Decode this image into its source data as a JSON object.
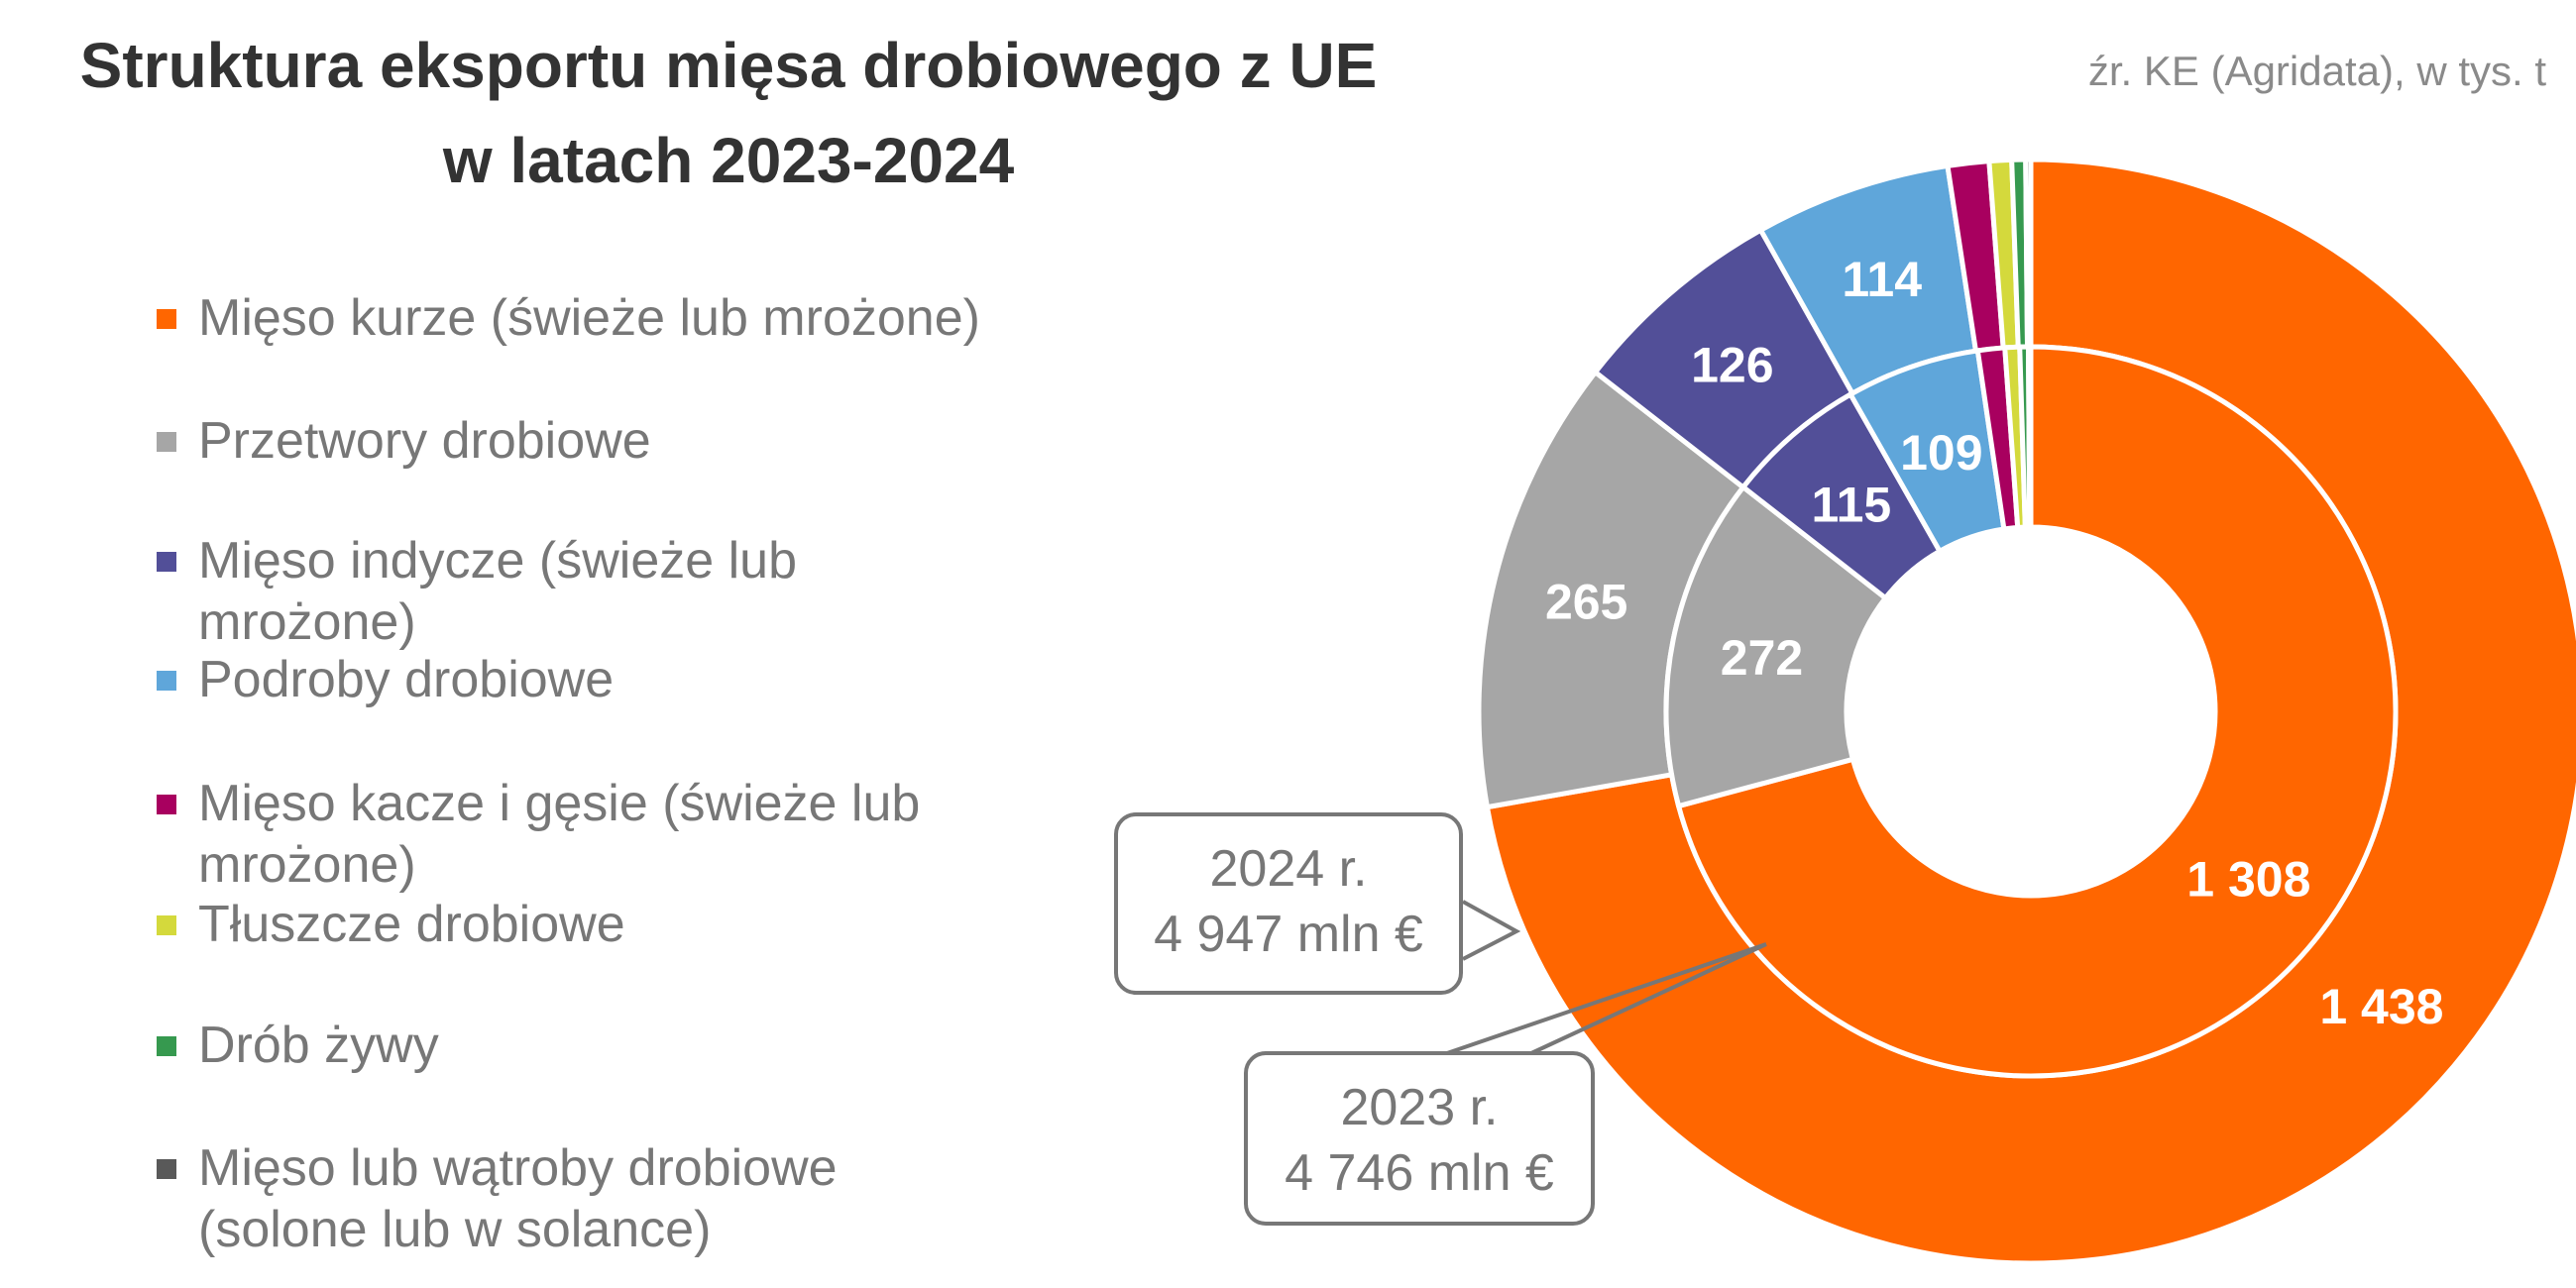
{
  "chart_data": {
    "type": "pie",
    "subtype": "nested-donut",
    "title": "Struktura eksportu mięsa drobiowego z UE w latach 2023-2024",
    "title_lines": [
      "Struktura eksportu mięsa drobiowego z UE",
      "w latach 2023-2024"
    ],
    "source": "źr. KE (Agridata), w tys. t",
    "legend_position": "left",
    "categories": [
      "Mięso kurze (świeże lub mrożone)",
      "Przetwory drobiowe",
      "Mięso indycze (świeże lub mrożone)",
      "Podroby drobiowe",
      "Mięso kacze i gęsie (świeże lub mrożone)",
      "Tłuszcze drobiowe",
      "Drób żywy",
      "Mięso lub wątroby drobiowe (solone lub w solance)"
    ],
    "legend_lines": [
      [
        "Mięso kurze (świeże lub mrożone)"
      ],
      [
        "Przetwory drobiowe"
      ],
      [
        "Mięso indycze (świeże lub",
        "mrożone)"
      ],
      [
        "Podroby drobiowe"
      ],
      [
        "Mięso kacze i gęsie (świeże lub",
        "mrożone)"
      ],
      [
        "Tłuszcze drobiowe"
      ],
      [
        "Drób żywy"
      ],
      [
        "Mięso lub wątroby drobiowe",
        "(solone lub w solance)"
      ]
    ],
    "colors": [
      "#ff6600",
      "#a6a6a6",
      "#524f98",
      "#5fa6da",
      "#a8005f",
      "#d4d93c",
      "#36994f",
      "#595959"
    ],
    "series": [
      {
        "name": "2024",
        "ring": "outer",
        "values": [
          1438,
          265,
          126,
          114,
          24,
          13,
          8,
          3
        ],
        "labels": [
          "1 438",
          "265",
          "126",
          "114",
          "",
          "",
          "",
          ""
        ],
        "callout": [
          "2024 r.",
          "4 947 mln €"
        ]
      },
      {
        "name": "2023",
        "ring": "inner",
        "values": [
          1308,
          272,
          115,
          109,
          22,
          12,
          7,
          2
        ],
        "labels": [
          "1 308",
          "272",
          "115",
          "109",
          "",
          "",
          "",
          ""
        ],
        "callout": [
          "2023 r.",
          "4 746 mln €"
        ]
      }
    ],
    "unit": "tys. t"
  }
}
